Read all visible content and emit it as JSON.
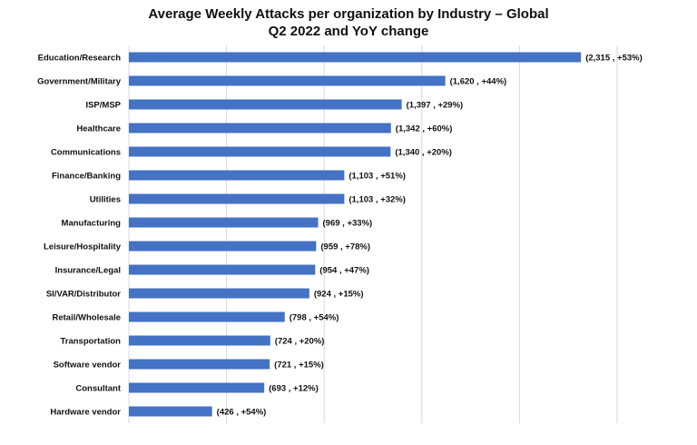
{
  "chart_data": {
    "type": "bar",
    "orientation": "horizontal",
    "title": "Average Weekly Attacks per organization by Industry – Global",
    "subtitle": "Q2 2022 and YoY change",
    "categories": [
      "Education/Research",
      "Government/Military",
      "ISP/MSP",
      "Healthcare",
      "Communications",
      "Finance/Banking",
      "Utilities",
      "Manufacturing",
      "Leisure/Hospitality",
      "Insurance/Legal",
      "SI/VAR/Distributor",
      "Retail/Wholesale",
      "Transportation",
      "Software vendor",
      "Consultant",
      "Hardware vendor"
    ],
    "values": [
      2315,
      1620,
      1397,
      1342,
      1340,
      1103,
      1103,
      969,
      959,
      954,
      924,
      798,
      724,
      721,
      693,
      426
    ],
    "data_labels": [
      "(2,315 , +53%)",
      "(1,620 ,  +44%)",
      "(1,397 ,  +29%)",
      "(1,342 , +60%)",
      "(1,340 ,  +20%)",
      "(1,103 , +51%)",
      "(1,103 , +32%)",
      "(969 , +33%)",
      "(959 , +78%)",
      "(954 , +47%)",
      "(924 , +15%)",
      "(798 , +54%)",
      "(724 , +20%)",
      "(721 , +15%)",
      "(693 , +12%)",
      "(426 , +54%)"
    ],
    "xlim": [
      0,
      2500
    ],
    "grid_step": 500,
    "grid": true,
    "tick_labels_shown": false,
    "bar_color": "#4472C4",
    "grid_color": "#D9D9D9"
  }
}
